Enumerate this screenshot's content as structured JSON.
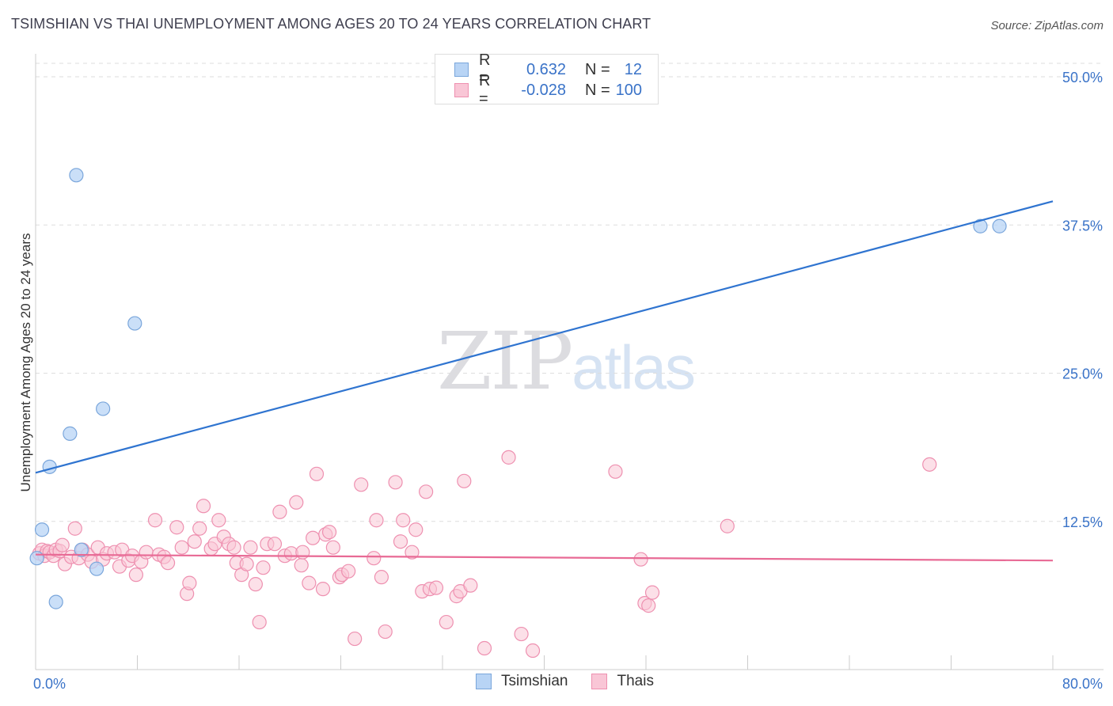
{
  "title": "TSIMSHIAN VS THAI UNEMPLOYMENT AMONG AGES 20 TO 24 YEARS CORRELATION CHART",
  "source": "Source: ZipAtlas.com",
  "watermark": {
    "zip": "ZIP",
    "atlas": "atlas"
  },
  "colors": {
    "tsimshian_fill": "#b8d4f5",
    "tsimshian_stroke": "#7aa6db",
    "tsimshian_line": "#2f74d0",
    "thai_fill": "#f9c6d6",
    "thai_stroke": "#ee90b0",
    "thai_line": "#e86a95",
    "tick_label": "#3a73c8",
    "grid": "#dddddd"
  },
  "legend_top": [
    {
      "series": "Tsimshian",
      "r_label": "R =",
      "r_value": "0.632",
      "n_label": "N =",
      "n_value": "12"
    },
    {
      "series": "Thais",
      "r_label": "R =",
      "r_value": "-0.028",
      "n_label": "N =",
      "n_value": "100"
    }
  ],
  "legend_bottom": [
    "Tsimshian",
    "Thais"
  ],
  "chart_data": {
    "type": "scatter",
    "title": "TSIMSHIAN VS THAI UNEMPLOYMENT AMONG AGES 20 TO 24 YEARS CORRELATION CHART",
    "xlabel": "",
    "ylabel": "Unemployment Among Ages 20 to 24 years",
    "xlim": [
      0,
      80
    ],
    "ylim": [
      0,
      50
    ],
    "x_tick_labels": [
      "0.0%",
      "80.0%"
    ],
    "y_ticks": [
      12.5,
      25.0,
      37.5,
      50.0
    ],
    "y_tick_labels": [
      "12.5%",
      "25.0%",
      "37.5%",
      "50.0%"
    ],
    "series": [
      {
        "name": "Tsimshian",
        "R": 0.632,
        "N": 12,
        "trend": {
          "x0": 0,
          "y0": 16.6,
          "x1": 80,
          "y1": 39.5
        },
        "points": [
          [
            0.1,
            9.4
          ],
          [
            0.5,
            11.8
          ],
          [
            1.1,
            17.1
          ],
          [
            1.6,
            5.7
          ],
          [
            2.7,
            19.9
          ],
          [
            3.2,
            41.7
          ],
          [
            3.6,
            10.1
          ],
          [
            4.8,
            8.5
          ],
          [
            5.3,
            22.0
          ],
          [
            7.8,
            29.2
          ],
          [
            74.3,
            37.4
          ],
          [
            75.8,
            37.4
          ]
        ]
      },
      {
        "name": "Thais",
        "R": -0.028,
        "N": 100,
        "trend": {
          "x0": 0,
          "y0": 9.7,
          "x1": 80,
          "y1": 9.2
        },
        "points": [
          [
            0.3,
            9.8
          ],
          [
            0.5,
            10.1
          ],
          [
            0.7,
            9.6
          ],
          [
            0.9,
            10.0
          ],
          [
            1.1,
            9.9
          ],
          [
            1.4,
            9.6
          ],
          [
            1.6,
            10.1
          ],
          [
            1.9,
            10.0
          ],
          [
            2.1,
            10.5
          ],
          [
            2.3,
            8.9
          ],
          [
            2.8,
            9.5
          ],
          [
            3.1,
            11.9
          ],
          [
            3.4,
            9.4
          ],
          [
            3.7,
            10.1
          ],
          [
            4.1,
            9.7
          ],
          [
            4.4,
            9.1
          ],
          [
            4.9,
            10.3
          ],
          [
            5.3,
            9.3
          ],
          [
            5.6,
            9.8
          ],
          [
            6.2,
            9.9
          ],
          [
            6.6,
            8.7
          ],
          [
            6.8,
            10.1
          ],
          [
            7.3,
            9.2
          ],
          [
            7.6,
            9.6
          ],
          [
            7.9,
            8.0
          ],
          [
            8.3,
            9.1
          ],
          [
            8.7,
            9.9
          ],
          [
            9.4,
            12.6
          ],
          [
            9.7,
            9.7
          ],
          [
            10.1,
            9.5
          ],
          [
            10.4,
            9.0
          ],
          [
            11.1,
            12.0
          ],
          [
            11.5,
            10.3
          ],
          [
            11.9,
            6.4
          ],
          [
            12.1,
            7.3
          ],
          [
            12.5,
            10.8
          ],
          [
            12.9,
            11.9
          ],
          [
            13.2,
            13.8
          ],
          [
            13.8,
            10.2
          ],
          [
            14.1,
            10.6
          ],
          [
            14.4,
            12.6
          ],
          [
            14.8,
            11.2
          ],
          [
            15.2,
            10.6
          ],
          [
            15.6,
            10.3
          ],
          [
            15.8,
            9.0
          ],
          [
            16.2,
            8.0
          ],
          [
            16.6,
            8.9
          ],
          [
            16.9,
            10.3
          ],
          [
            17.3,
            7.2
          ],
          [
            17.6,
            4.0
          ],
          [
            17.9,
            8.6
          ],
          [
            18.2,
            10.6
          ],
          [
            18.8,
            10.6
          ],
          [
            19.2,
            13.3
          ],
          [
            19.6,
            9.6
          ],
          [
            20.1,
            9.8
          ],
          [
            20.5,
            14.1
          ],
          [
            20.9,
            8.8
          ],
          [
            21.0,
            9.9
          ],
          [
            21.5,
            7.3
          ],
          [
            21.8,
            11.1
          ],
          [
            22.1,
            16.5
          ],
          [
            22.6,
            6.8
          ],
          [
            22.8,
            11.4
          ],
          [
            23.1,
            11.6
          ],
          [
            23.4,
            10.3
          ],
          [
            23.9,
            7.8
          ],
          [
            24.1,
            8.0
          ],
          [
            24.6,
            8.3
          ],
          [
            25.1,
            2.6
          ],
          [
            25.6,
            15.6
          ],
          [
            26.6,
            9.4
          ],
          [
            26.8,
            12.6
          ],
          [
            27.2,
            7.8
          ],
          [
            27.5,
            3.2
          ],
          [
            28.3,
            15.8
          ],
          [
            28.7,
            10.8
          ],
          [
            28.9,
            12.6
          ],
          [
            29.6,
            9.9
          ],
          [
            29.9,
            11.8
          ],
          [
            30.4,
            6.6
          ],
          [
            30.7,
            15.0
          ],
          [
            31.0,
            6.8
          ],
          [
            31.5,
            6.9
          ],
          [
            32.3,
            4.0
          ],
          [
            33.1,
            6.2
          ],
          [
            33.4,
            6.6
          ],
          [
            33.7,
            15.9
          ],
          [
            34.2,
            7.1
          ],
          [
            35.3,
            1.8
          ],
          [
            37.2,
            17.9
          ],
          [
            38.2,
            3.0
          ],
          [
            39.1,
            1.6
          ],
          [
            45.6,
            16.7
          ],
          [
            47.6,
            9.3
          ],
          [
            47.9,
            5.6
          ],
          [
            48.2,
            5.4
          ],
          [
            48.5,
            6.5
          ],
          [
            54.4,
            12.1
          ],
          [
            70.3,
            17.3
          ]
        ]
      }
    ]
  }
}
